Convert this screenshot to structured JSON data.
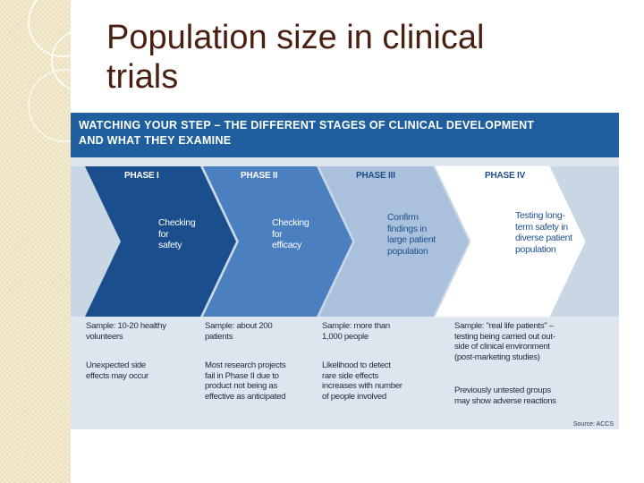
{
  "slide": {
    "title_line1": "Population size in clinical",
    "title_line2": "trials"
  },
  "figure": {
    "header_line1": "WATCHING YOUR STEP – THE DIFFERENT STAGES OF CLINICAL DEVELOPMENT",
    "header_line2": "AND WHAT THEY EXAMINE",
    "phases": [
      {
        "label": "PHASE I",
        "description": "Checking\nfor\nsafety",
        "color": "#1a4e8c"
      },
      {
        "label": "PHASE II",
        "description": "Checking\nfor\nefficacy",
        "color": "#4a7fc0"
      },
      {
        "label": "PHASE III",
        "description": "Confirm\nfindings in\nlarge patient\npopulation",
        "color": "#a9c1dd"
      },
      {
        "label": "PHASE IV",
        "description": "Testing long-\nterm safety in\ndiverse patient\npopulation",
        "color": "#ffffff"
      }
    ],
    "samples": [
      "Sample: 10-20 healthy\nvolunteers",
      "Sample: about 200\npatients",
      "Sample: more than\n1,000 people",
      "Sample: \"real life patients\" –\ntesting being carried out out-\nside of clinical environment\n(post-marketing studies)"
    ],
    "notes": [
      "Unexpected side\neffects may occur",
      "Most research projects\nfail in Phase II due to\nproduct not being as\neffective as anticipated",
      "Likelihood to detect\nrare side effects\nincreases with number\nof people involved",
      "Previously untested groups\nmay show adverse reactions"
    ],
    "source": "Source: ACCS"
  },
  "colors": {
    "title": "#4a1f0f",
    "header_bg": "#1f5f9e",
    "figure_bg": "#dde6ee"
  }
}
